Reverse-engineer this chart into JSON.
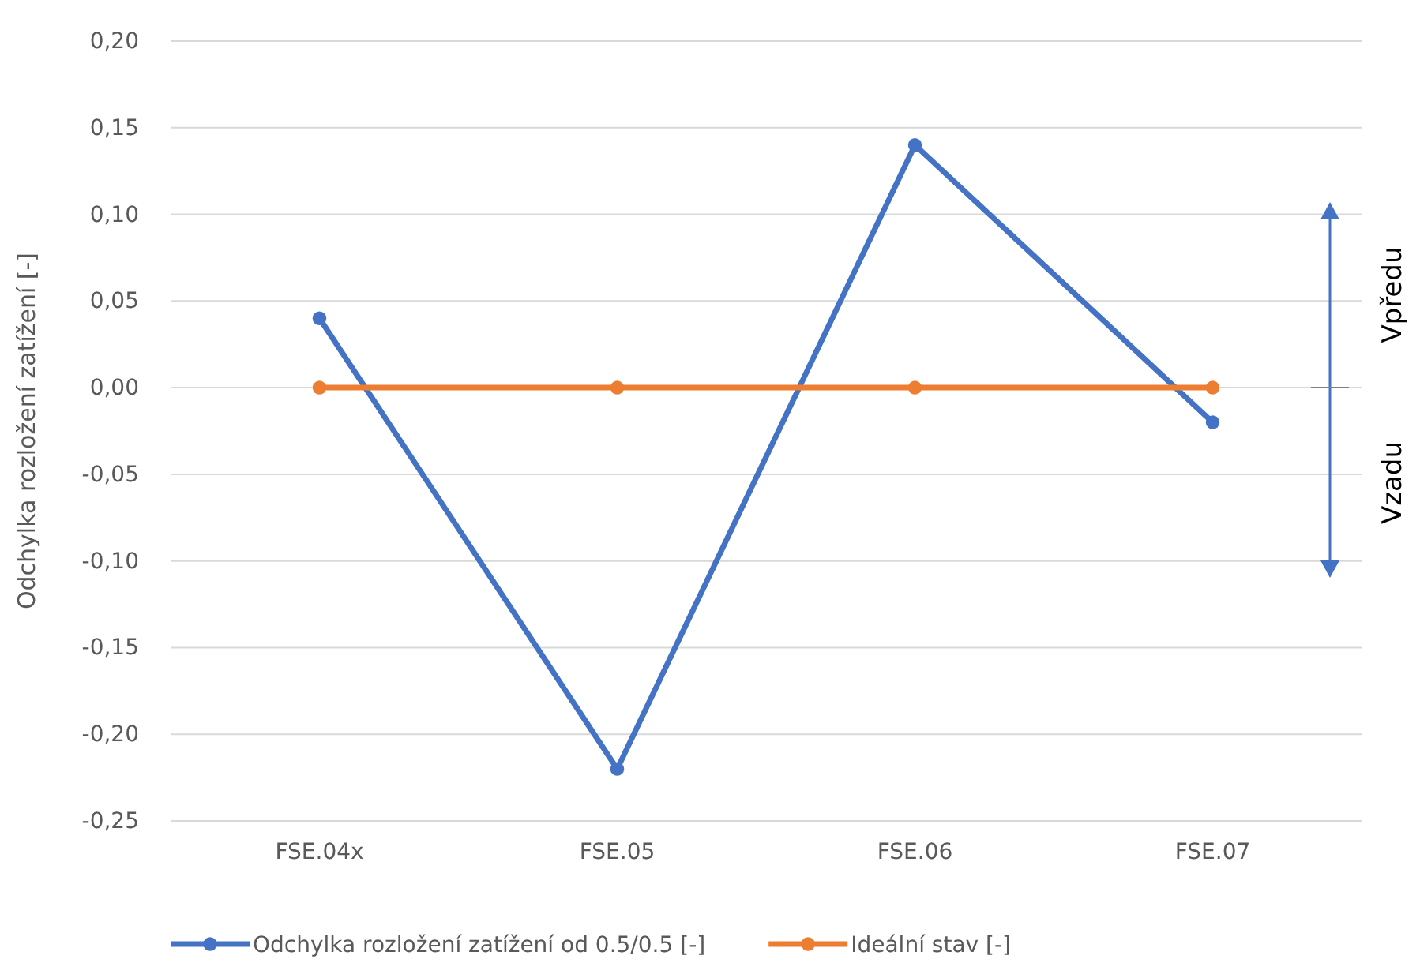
{
  "chart_data": {
    "type": "line",
    "ylabel": "Odchylka rozložení zatížení [-]",
    "categories": [
      "FSE.04x",
      "FSE.05",
      "FSE.06",
      "FSE.07"
    ],
    "series": [
      {
        "name": "Odchylka rozložení zatížení od 0.5/0.5 [-]",
        "color": "#4472c4",
        "values": [
          0.04,
          -0.22,
          0.14,
          -0.02
        ]
      },
      {
        "name": "Ideální stav [-]",
        "color": "#ed7d31",
        "values": [
          0,
          0,
          0,
          0
        ]
      }
    ],
    "ylim": [
      -0.25,
      0.2
    ],
    "yticks": [
      {
        "value": -0.25,
        "label": "-0,25"
      },
      {
        "value": -0.2,
        "label": "-0,20"
      },
      {
        "value": -0.15,
        "label": "-0,15"
      },
      {
        "value": -0.1,
        "label": "-0,10"
      },
      {
        "value": -0.05,
        "label": "-0,05"
      },
      {
        "value": 0,
        "label": "0,00"
      },
      {
        "value": 0.05,
        "label": "0,05"
      },
      {
        "value": 0.1,
        "label": "0,10"
      },
      {
        "value": 0.15,
        "label": "0,15"
      },
      {
        "value": 0.2,
        "label": "0,20"
      }
    ],
    "grid": "y",
    "legend": "bottom",
    "marker": "circle",
    "line_style": "solid",
    "annotations": [
      "Vpředu",
      "Vzadu"
    ]
  }
}
